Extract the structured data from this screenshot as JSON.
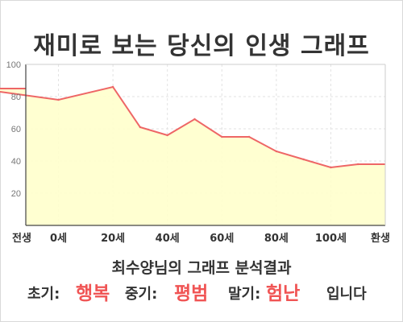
{
  "title": "재미로 보는 당신의 인생 그래프",
  "chart_data": {
    "type": "area",
    "categories": [
      "전생",
      "0세",
      "20세",
      "40세",
      "60세",
      "80세",
      "100세",
      "환생"
    ],
    "x": [
      -30,
      0,
      20,
      30,
      40,
      50,
      60,
      70,
      80,
      90,
      100,
      110
    ],
    "y": [
      85,
      78,
      86,
      61,
      56,
      66,
      55,
      55,
      46,
      41,
      36,
      38
    ],
    "x_ticks": [
      -12,
      0,
      20,
      40,
      60,
      80,
      100,
      120
    ],
    "ylim": [
      0,
      100
    ],
    "y_ticks": [
      20,
      40,
      60,
      80,
      100
    ],
    "grid": true,
    "line_color": "#ee6666",
    "fill_color": "#ffffcc"
  },
  "result": {
    "heading": "최수양님의 그래프 분석결과",
    "early_label": "초기:",
    "early_value": "행복",
    "middle_label": "중기:",
    "middle_value": "평범",
    "late_label": "말기:",
    "late_value": "험난",
    "ending": "입니다"
  },
  "colors": {
    "accent": "#f05454",
    "text": "#333333"
  }
}
